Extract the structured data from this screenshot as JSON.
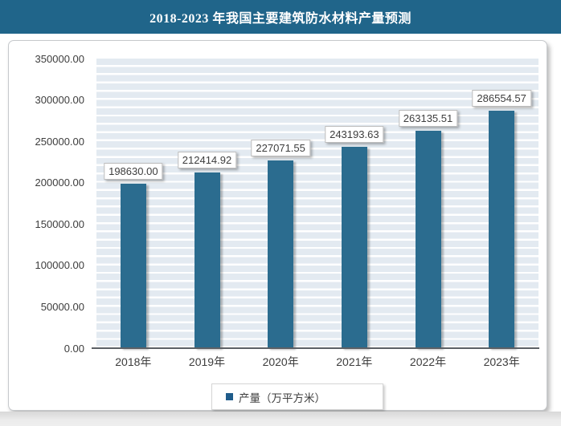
{
  "header": {
    "title": "2018-2023 年我国主要建筑防水材料产量预测"
  },
  "legend": {
    "label": "产量（万平方米）"
  },
  "palette": {
    "header_bg": "#20658A",
    "bar_color": "#2B6C8F",
    "legend_marker_color": "#1F5C8B",
    "stripe_color": "#E3EAF1",
    "axis_color": "#5C6065",
    "label_text_color": "#3D3D3D"
  },
  "chart_data": {
    "type": "bar",
    "title": "2018-2023 年我国主要建筑防水材料产量预测",
    "categories": [
      "2018年",
      "2019年",
      "2020年",
      "2021年",
      "2022年",
      "2023年"
    ],
    "series": [
      {
        "name": "产量（万平方米）",
        "values": [
          198630.0,
          212414.92,
          227071.55,
          243193.63,
          263135.51,
          286554.57
        ]
      }
    ],
    "value_labels": [
      "198630.00",
      "212414.92",
      "227071.55",
      "243193.63",
      "263135.51",
      "286554.57"
    ],
    "xlabel": "",
    "ylabel": "",
    "ylim": [
      0,
      350000
    ],
    "ytick_interval_major": 50000,
    "ytick_interval_minor": 10000,
    "yticks": [
      "350000.00",
      "300000.00",
      "250000.00",
      "200000.00",
      "150000.00",
      "100000.00",
      "50000.00",
      "0.00"
    ],
    "grid": "horizontal-minor-stripes",
    "legend_position": "bottom-center",
    "bar_color": "#2B6C8F"
  }
}
